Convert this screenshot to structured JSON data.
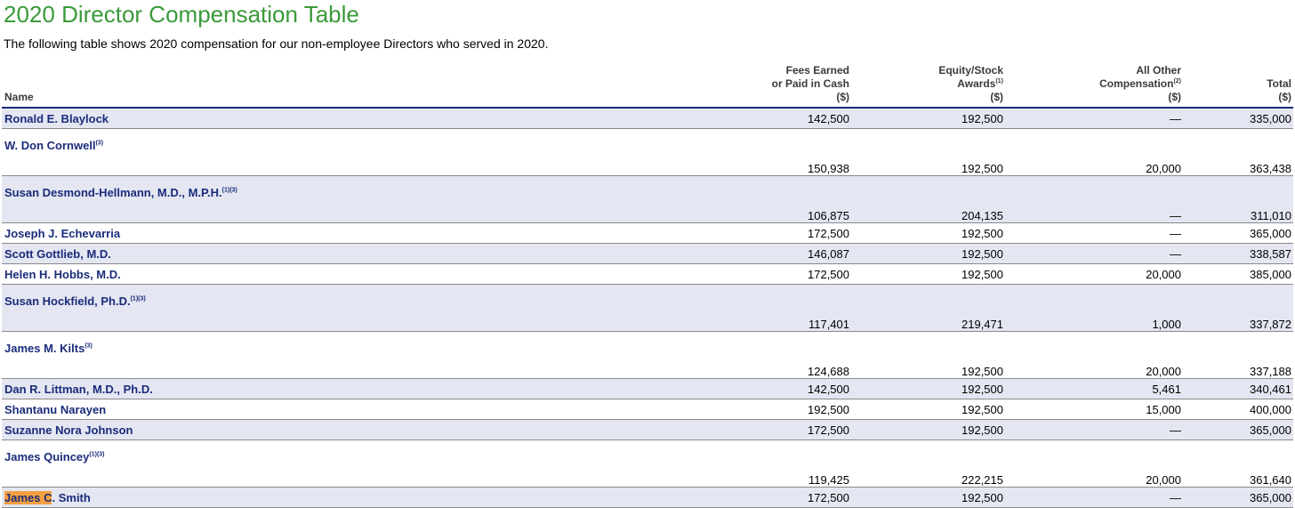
{
  "title": "2020 Director Compensation Table",
  "subtitle": "The following table shows 2020 compensation for our non-employee Directors who served in 2020.",
  "headers": {
    "name": "Name",
    "fees": [
      "Fees Earned",
      "or Paid in Cash",
      "($)"
    ],
    "equity": [
      "Equity/Stock",
      "Awards",
      "(1)",
      "($)"
    ],
    "other": [
      "All Other",
      "Compensation",
      "(2)",
      "($)"
    ],
    "total": [
      "Total",
      "($)"
    ]
  },
  "highlight": "James C",
  "rows": [
    {
      "name": "Ronald E. Blaylock",
      "sup": "",
      "fees": "142,500",
      "equity": "192,500",
      "other": "—",
      "total": "335,000"
    },
    {
      "name": "W. Don Cornwell",
      "sup": "(3)",
      "fees": "150,938",
      "equity": "192,500",
      "other": "20,000",
      "total": "363,438"
    },
    {
      "name": "Susan Desmond-Hellmann, M.D., M.P.H.",
      "sup": "(1)(3)",
      "fees": "106,875",
      "equity": "204,135",
      "other": "—",
      "total": "311,010"
    },
    {
      "name": "Joseph J. Echevarria",
      "sup": "",
      "fees": "172,500",
      "equity": "192,500",
      "other": "—",
      "total": "365,000"
    },
    {
      "name": "Scott Gottlieb, M.D.",
      "sup": "",
      "fees": "146,087",
      "equity": "192,500",
      "other": "—",
      "total": "338,587"
    },
    {
      "name": "Helen H. Hobbs, M.D.",
      "sup": "",
      "fees": "172,500",
      "equity": "192,500",
      "other": "20,000",
      "total": "385,000"
    },
    {
      "name": "Susan Hockfield, Ph.D.",
      "sup": "(1)(3)",
      "fees": "117,401",
      "equity": "219,471",
      "other": "1,000",
      "total": "337,872"
    },
    {
      "name": "James M. Kilts",
      "sup": "(3)",
      "fees": "124,688",
      "equity": "192,500",
      "other": "20,000",
      "total": "337,188"
    },
    {
      "name": "Dan R. Littman, M.D., Ph.D.",
      "sup": "",
      "fees": "142,500",
      "equity": "192,500",
      "other": "5,461",
      "total": "340,461"
    },
    {
      "name": "Shantanu Narayen",
      "sup": "",
      "fees": "192,500",
      "equity": "192,500",
      "other": "15,000",
      "total": "400,000"
    },
    {
      "name": "Suzanne Nora Johnson",
      "sup": "",
      "fees": "172,500",
      "equity": "192,500",
      "other": "—",
      "total": "365,000"
    },
    {
      "name": "James Quincey",
      "sup": "(1)(3)",
      "fees": "119,425",
      "equity": "222,215",
      "other": "20,000",
      "total": "361,640"
    },
    {
      "name": "James C. Smith",
      "sup": "",
      "fees": "172,500",
      "equity": "192,500",
      "other": "—",
      "total": "365,000"
    }
  ]
}
